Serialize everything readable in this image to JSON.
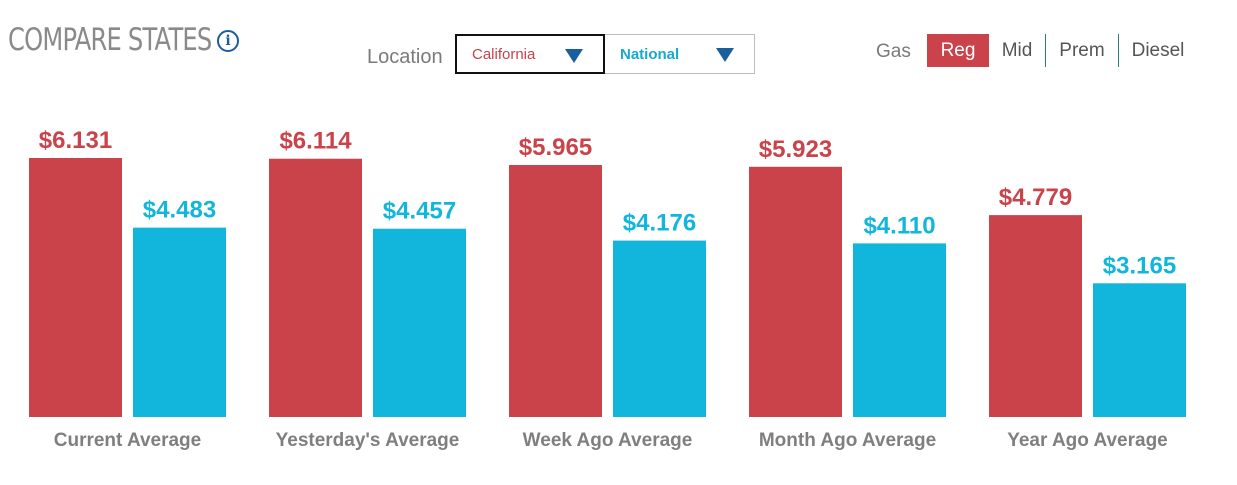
{
  "header": {
    "title": "COMPARE STATES",
    "info_icon": "info-icon",
    "location_label": "Location",
    "state_select": "California",
    "national_select": "National"
  },
  "gas": {
    "label": "Gas",
    "options": [
      "Reg",
      "Mid",
      "Prem",
      "Diesel"
    ],
    "active": "Reg"
  },
  "colors": {
    "state": "#cb434a",
    "national": "#12b6dc"
  },
  "chart_data": {
    "type": "bar",
    "categories": [
      "Current Average",
      "Yesterday's Average",
      "Week Ago Average",
      "Month Ago Average",
      "Year Ago Average"
    ],
    "series": [
      {
        "name": "California",
        "values": [
          6.131,
          6.114,
          5.965,
          5.923,
          4.779
        ],
        "labels": [
          "$6.131",
          "$6.114",
          "$5.965",
          "$5.923",
          "$4.779"
        ]
      },
      {
        "name": "National",
        "values": [
          4.483,
          4.457,
          4.176,
          4.11,
          3.165
        ],
        "labels": [
          "$4.483",
          "$4.457",
          "$4.176",
          "$4.110",
          "$3.165"
        ]
      }
    ],
    "ylim": [
      0,
      6.131
    ],
    "grid": false
  }
}
